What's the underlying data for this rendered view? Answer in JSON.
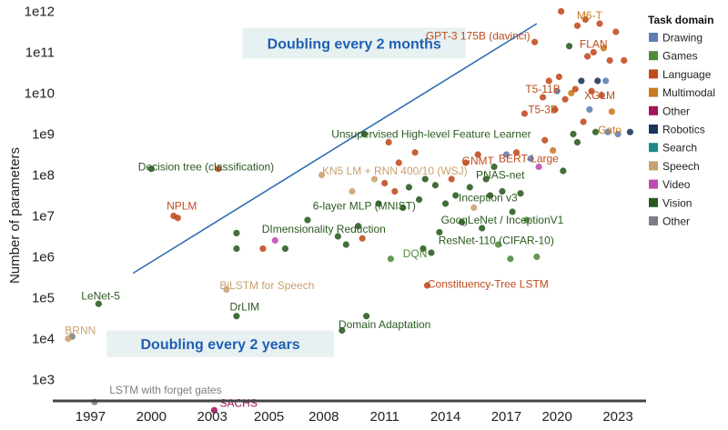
{
  "chart_data": {
    "type": "scatter",
    "title": "",
    "xlabel": "",
    "ylabel": "Number of parameters",
    "xlim": [
      1995.5,
      2024.3
    ],
    "ylim_log10": [
      2.5,
      12.1
    ],
    "y_scale": "log",
    "x_ticks": [
      "1997",
      "2000",
      "2003",
      "2005",
      "2008",
      "2011",
      "2014",
      "2017",
      "2020",
      "2023"
    ],
    "x_tick_values": [
      1997,
      2000,
      2003,
      2005.8,
      2008.5,
      2011.5,
      2014.5,
      2017.5,
      2020,
      2023
    ],
    "y_ticks": [
      "1e3",
      "1e4",
      "1e5",
      "1e6",
      "1e7",
      "1e8",
      "1e9",
      "1e10",
      "1e11",
      "1e12"
    ],
    "y_tick_values": [
      3,
      4,
      5,
      6,
      7,
      8,
      9,
      10,
      11,
      12
    ],
    "grid": false,
    "legend": {
      "title": "Task domain",
      "placement": "right",
      "entries": [
        {
          "name": "Drawing",
          "color": "#5b7fb4"
        },
        {
          "name": "Games",
          "color": "#4f8a3c"
        },
        {
          "name": "Language",
          "color": "#c04a1c"
        },
        {
          "name": "Multimodal",
          "color": "#c97a1e"
        },
        {
          "name": "Other",
          "color": "#a3125a"
        },
        {
          "name": "Robotics",
          "color": "#1a3358"
        },
        {
          "name": "Search",
          "color": "#1b8a8a"
        },
        {
          "name": "Speech",
          "color": "#c9a06f"
        },
        {
          "name": "Video",
          "color": "#c04bb0"
        },
        {
          "name": "Vision",
          "color": "#2a5a1e"
        },
        {
          "name": "Other",
          "color": "#7a7f85"
        }
      ]
    },
    "bands": [
      {
        "label": "Doubling every 2 months",
        "x": [
          2004.5,
          2015.5
        ],
        "y_log10": [
          10.85,
          11.6
        ]
      },
      {
        "label": "Doubling every 2 years",
        "x": [
          1997.8,
          2009.0
        ],
        "y_log10": [
          3.55,
          4.2
        ]
      }
    ],
    "trend_line": {
      "x": [
        1999.1,
        2019.0
      ],
      "y_log10": [
        5.6,
        11.7
      ]
    },
    "annotations": [
      {
        "text": "M6-T",
        "x": 2021.6,
        "y_log10": 11.9,
        "domain": "Multimodal"
      },
      {
        "text": "FLAN",
        "x": 2021.8,
        "y_log10": 11.2,
        "domain": "Language"
      },
      {
        "text": "GPT-3 175B (davinci)",
        "x": 2016.1,
        "y_log10": 11.4,
        "domain": "Language"
      },
      {
        "text": "T5-11B",
        "x": 2019.3,
        "y_log10": 10.1,
        "domain": "Language"
      },
      {
        "text": "XGLM",
        "x": 2022.1,
        "y_log10": 9.95,
        "domain": "Language"
      },
      {
        "text": "T5-3B",
        "x": 2019.3,
        "y_log10": 9.6,
        "domain": "Language"
      },
      {
        "text": "Gato",
        "x": 2022.6,
        "y_log10": 9.1,
        "domain": "Multimodal"
      },
      {
        "text": "Unsupervised High-level Feature Learner",
        "x": 2013.8,
        "y_log10": 9.0,
        "domain": "Vision"
      },
      {
        "text": "GNMT",
        "x": 2016.1,
        "y_log10": 8.35,
        "domain": "Language"
      },
      {
        "text": "BERT-Large",
        "x": 2018.6,
        "y_log10": 8.4,
        "domain": "Language"
      },
      {
        "text": "Decision tree (classification)",
        "x": 2002.7,
        "y_log10": 8.2,
        "domain": "Vision"
      },
      {
        "text": "KN5 LM + RNN 400/10 (WSJ)",
        "x": 2012.0,
        "y_log10": 8.1,
        "domain": "Speech"
      },
      {
        "text": "PNAS-net",
        "x": 2017.2,
        "y_log10": 8.0,
        "domain": "Vision"
      },
      {
        "text": "NPLM",
        "x": 2001.5,
        "y_log10": 7.25,
        "domain": "Language"
      },
      {
        "text": "6-layer MLP (MNIST)",
        "x": 2010.5,
        "y_log10": 7.25,
        "domain": "Vision"
      },
      {
        "text": "Inception v3",
        "x": 2016.6,
        "y_log10": 7.45,
        "domain": "Vision"
      },
      {
        "text": "GoogLeNet / InceptionV1",
        "x": 2017.3,
        "y_log10": 6.9,
        "domain": "Vision"
      },
      {
        "text": "DImensionality Reduction",
        "x": 2008.5,
        "y_log10": 6.68,
        "domain": "Vision"
      },
      {
        "text": "ResNet-110 (CIFAR-10)",
        "x": 2017.0,
        "y_log10": 6.4,
        "domain": "Vision"
      },
      {
        "text": "DQN",
        "x": 2013.0,
        "y_log10": 6.08,
        "domain": "Games"
      },
      {
        "text": "BiLSTM for Speech",
        "x": 2005.7,
        "y_log10": 5.3,
        "domain": "Speech"
      },
      {
        "text": "Constituency-Tree LSTM",
        "x": 2016.6,
        "y_log10": 5.33,
        "domain": "Language"
      },
      {
        "text": "LeNet-5",
        "x": 1997.5,
        "y_log10": 5.05,
        "domain": "Vision"
      },
      {
        "text": "DrLIM",
        "x": 2004.6,
        "y_log10": 4.78,
        "domain": "Vision"
      },
      {
        "text": "Domain Adaptation",
        "x": 2011.5,
        "y_log10": 4.35,
        "domain": "Vision"
      },
      {
        "text": "BRNN",
        "x": 1996.5,
        "y_log10": 4.2,
        "domain": "Speech"
      },
      {
        "text": "LSTM with forget gates",
        "x": 2000.7,
        "y_log10": 2.75,
        "domain": "Other"
      },
      {
        "text": "SACHS",
        "x": 2004.3,
        "y_log10": 2.42,
        "domain": "Other"
      }
    ],
    "points": [
      {
        "x": 1996.1,
        "y_log10": 4.05,
        "domain": "Other"
      },
      {
        "x": 1995.9,
        "y_log10": 4.0,
        "domain": "Speech"
      },
      {
        "x": 1997.2,
        "y_log10": 2.45,
        "domain": "Other"
      },
      {
        "x": 1997.4,
        "y_log10": 4.85,
        "domain": "Vision"
      },
      {
        "x": 2000.0,
        "y_log10": 8.15,
        "domain": "Vision"
      },
      {
        "x": 2001.1,
        "y_log10": 7.0,
        "domain": "Language"
      },
      {
        "x": 2001.3,
        "y_log10": 6.95,
        "domain": "Language"
      },
      {
        "x": 2003.1,
        "y_log10": 2.25,
        "domain": "Other"
      },
      {
        "x": 2003.3,
        "y_log10": 8.15,
        "domain": "Language"
      },
      {
        "x": 2003.7,
        "y_log10": 5.2,
        "domain": "Speech"
      },
      {
        "x": 2004.2,
        "y_log10": 6.58,
        "domain": "Vision"
      },
      {
        "x": 2004.2,
        "y_log10": 6.2,
        "domain": "Vision"
      },
      {
        "x": 2004.2,
        "y_log10": 4.55,
        "domain": "Vision"
      },
      {
        "x": 2005.5,
        "y_log10": 6.2,
        "domain": "Language"
      },
      {
        "x": 2006.1,
        "y_log10": 6.4,
        "domain": "Video"
      },
      {
        "x": 2006.6,
        "y_log10": 6.2,
        "domain": "Vision"
      },
      {
        "x": 2007.7,
        "y_log10": 6.9,
        "domain": "Vision"
      },
      {
        "x": 2008.4,
        "y_log10": 8.0,
        "domain": "Speech"
      },
      {
        "x": 2009.2,
        "y_log10": 6.5,
        "domain": "Vision"
      },
      {
        "x": 2009.4,
        "y_log10": 4.2,
        "domain": "Vision"
      },
      {
        "x": 2009.6,
        "y_log10": 6.3,
        "domain": "Vision"
      },
      {
        "x": 2009.9,
        "y_log10": 7.6,
        "domain": "Speech"
      },
      {
        "x": 2010.2,
        "y_log10": 6.75,
        "domain": "Vision"
      },
      {
        "x": 2010.4,
        "y_log10": 6.45,
        "domain": "Language"
      },
      {
        "x": 2010.5,
        "y_log10": 9.0,
        "domain": "Vision"
      },
      {
        "x": 2010.6,
        "y_log10": 4.55,
        "domain": "Vision"
      },
      {
        "x": 2011.0,
        "y_log10": 7.9,
        "domain": "Speech"
      },
      {
        "x": 2011.2,
        "y_log10": 7.3,
        "domain": "Vision"
      },
      {
        "x": 2011.5,
        "y_log10": 7.8,
        "domain": "Language"
      },
      {
        "x": 2011.7,
        "y_log10": 8.8,
        "domain": "Language"
      },
      {
        "x": 2011.8,
        "y_log10": 5.95,
        "domain": "Games"
      },
      {
        "x": 2012.0,
        "y_log10": 7.6,
        "domain": "Language"
      },
      {
        "x": 2012.2,
        "y_log10": 8.3,
        "domain": "Language"
      },
      {
        "x": 2012.4,
        "y_log10": 7.2,
        "domain": "Vision"
      },
      {
        "x": 2012.7,
        "y_log10": 7.7,
        "domain": "Vision"
      },
      {
        "x": 2013.0,
        "y_log10": 8.55,
        "domain": "Language"
      },
      {
        "x": 2013.2,
        "y_log10": 7.4,
        "domain": "Vision"
      },
      {
        "x": 2013.4,
        "y_log10": 6.2,
        "domain": "Vision"
      },
      {
        "x": 2013.5,
        "y_log10": 7.9,
        "domain": "Vision"
      },
      {
        "x": 2013.6,
        "y_log10": 5.3,
        "domain": "Language"
      },
      {
        "x": 2013.8,
        "y_log10": 6.1,
        "domain": "Vision"
      },
      {
        "x": 2014.0,
        "y_log10": 7.75,
        "domain": "Vision"
      },
      {
        "x": 2014.2,
        "y_log10": 6.6,
        "domain": "Vision"
      },
      {
        "x": 2014.5,
        "y_log10": 7.3,
        "domain": "Vision"
      },
      {
        "x": 2014.8,
        "y_log10": 7.9,
        "domain": "Language"
      },
      {
        "x": 2015.0,
        "y_log10": 7.5,
        "domain": "Vision"
      },
      {
        "x": 2015.3,
        "y_log10": 6.85,
        "domain": "Vision"
      },
      {
        "x": 2015.5,
        "y_log10": 8.3,
        "domain": "Language"
      },
      {
        "x": 2015.7,
        "y_log10": 7.7,
        "domain": "Vision"
      },
      {
        "x": 2015.9,
        "y_log10": 7.2,
        "domain": "Speech"
      },
      {
        "x": 2016.1,
        "y_log10": 8.5,
        "domain": "Language"
      },
      {
        "x": 2016.3,
        "y_log10": 6.7,
        "domain": "Vision"
      },
      {
        "x": 2016.5,
        "y_log10": 7.9,
        "domain": "Vision"
      },
      {
        "x": 2016.7,
        "y_log10": 7.5,
        "domain": "Vision"
      },
      {
        "x": 2016.9,
        "y_log10": 8.2,
        "domain": "Vision"
      },
      {
        "x": 2017.1,
        "y_log10": 6.3,
        "domain": "Games"
      },
      {
        "x": 2017.3,
        "y_log10": 7.6,
        "domain": "Vision"
      },
      {
        "x": 2017.5,
        "y_log10": 8.5,
        "domain": "Drawing"
      },
      {
        "x": 2017.7,
        "y_log10": 5.95,
        "domain": "Games"
      },
      {
        "x": 2017.8,
        "y_log10": 7.1,
        "domain": "Vision"
      },
      {
        "x": 2018.0,
        "y_log10": 8.55,
        "domain": "Language"
      },
      {
        "x": 2018.2,
        "y_log10": 7.55,
        "domain": "Vision"
      },
      {
        "x": 2018.4,
        "y_log10": 9.5,
        "domain": "Language"
      },
      {
        "x": 2018.5,
        "y_log10": 6.9,
        "domain": "Games"
      },
      {
        "x": 2018.7,
        "y_log10": 8.4,
        "domain": "Drawing"
      },
      {
        "x": 2018.9,
        "y_log10": 11.25,
        "domain": "Language"
      },
      {
        "x": 2019.0,
        "y_log10": 6.0,
        "domain": "Games"
      },
      {
        "x": 2019.1,
        "y_log10": 8.2,
        "domain": "Video"
      },
      {
        "x": 2019.3,
        "y_log10": 9.9,
        "domain": "Language"
      },
      {
        "x": 2019.4,
        "y_log10": 8.85,
        "domain": "Language"
      },
      {
        "x": 2019.6,
        "y_log10": 10.3,
        "domain": "Language"
      },
      {
        "x": 2019.8,
        "y_log10": 8.6,
        "domain": "Multimodal"
      },
      {
        "x": 2019.9,
        "y_log10": 9.6,
        "domain": "Language"
      },
      {
        "x": 2020.0,
        "y_log10": 10.05,
        "domain": "Drawing"
      },
      {
        "x": 2020.1,
        "y_log10": 10.4,
        "domain": "Language"
      },
      {
        "x": 2020.2,
        "y_log10": 12.0,
        "domain": "Language"
      },
      {
        "x": 2020.3,
        "y_log10": 8.1,
        "domain": "Vision"
      },
      {
        "x": 2020.4,
        "y_log10": 9.85,
        "domain": "Language"
      },
      {
        "x": 2020.6,
        "y_log10": 11.15,
        "domain": "Vision"
      },
      {
        "x": 2020.7,
        "y_log10": 10.0,
        "domain": "Multimodal"
      },
      {
        "x": 2020.8,
        "y_log10": 9.0,
        "domain": "Vision"
      },
      {
        "x": 2020.9,
        "y_log10": 10.1,
        "domain": "Language"
      },
      {
        "x": 2021.0,
        "y_log10": 8.8,
        "domain": "Vision"
      },
      {
        "x": 2021.0,
        "y_log10": 11.65,
        "domain": "Language"
      },
      {
        "x": 2021.2,
        "y_log10": 10.3,
        "domain": "Robotics"
      },
      {
        "x": 2021.3,
        "y_log10": 9.3,
        "domain": "Language"
      },
      {
        "x": 2021.4,
        "y_log10": 11.8,
        "domain": "Language"
      },
      {
        "x": 2021.5,
        "y_log10": 10.9,
        "domain": "Language"
      },
      {
        "x": 2021.6,
        "y_log10": 9.6,
        "domain": "Drawing"
      },
      {
        "x": 2021.7,
        "y_log10": 10.05,
        "domain": "Language"
      },
      {
        "x": 2021.8,
        "y_log10": 11.0,
        "domain": "Language"
      },
      {
        "x": 2021.9,
        "y_log10": 9.05,
        "domain": "Vision"
      },
      {
        "x": 2022.0,
        "y_log10": 10.3,
        "domain": "Robotics"
      },
      {
        "x": 2022.1,
        "y_log10": 11.7,
        "domain": "Language"
      },
      {
        "x": 2022.2,
        "y_log10": 9.95,
        "domain": "Language"
      },
      {
        "x": 2022.3,
        "y_log10": 11.1,
        "domain": "Multimodal"
      },
      {
        "x": 2022.4,
        "y_log10": 10.3,
        "domain": "Drawing"
      },
      {
        "x": 2022.5,
        "y_log10": 9.05,
        "domain": "Drawing"
      },
      {
        "x": 2022.6,
        "y_log10": 10.8,
        "domain": "Language"
      },
      {
        "x": 2022.7,
        "y_log10": 9.55,
        "domain": "Multimodal"
      },
      {
        "x": 2022.9,
        "y_log10": 11.5,
        "domain": "Language"
      },
      {
        "x": 2023.0,
        "y_log10": 9.0,
        "domain": "Drawing"
      },
      {
        "x": 2023.3,
        "y_log10": 10.8,
        "domain": "Language"
      },
      {
        "x": 2023.6,
        "y_log10": 9.05,
        "domain": "Robotics"
      }
    ]
  }
}
